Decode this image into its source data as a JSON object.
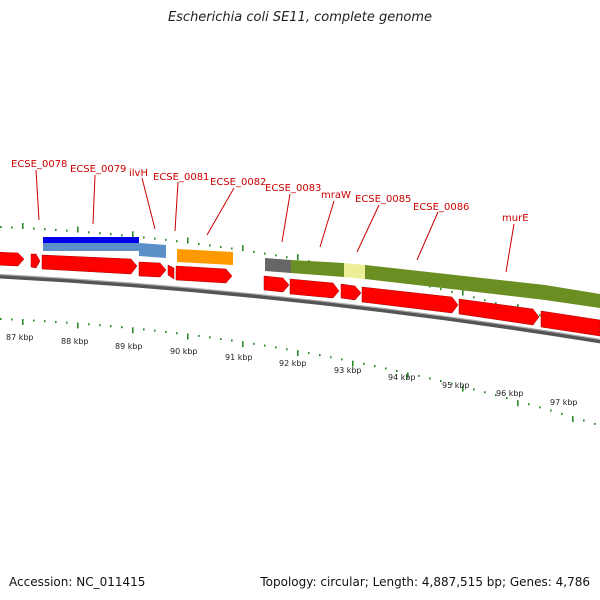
{
  "title": "Escherichia coli SE11, complete genome",
  "footer": {
    "accession": "Accession: NC_011415",
    "summary": "Topology: circular; Length: 4,887,515 bp; Genes: 4,786"
  },
  "kbp_labels": [
    "87 kbp",
    "88 kbp",
    "89 kbp",
    "90 kbp",
    "91 kbp",
    "92 kbp",
    "93 kbp",
    "94 kbp",
    "95 kbp",
    "96 kbp",
    "97 kbp"
  ],
  "gene_labels": [
    "ECSE_0078",
    "ECSE_0079",
    "ilvH",
    "ECSE_0081",
    "ECSE_0082",
    "ECSE_0083",
    "mraW",
    "ECSE_0085",
    "ECSE_0086",
    "murE"
  ],
  "colors": {
    "label": "#cc0000",
    "cds": "#ff0000",
    "tick": "#2a8a2a",
    "backbone": "#888888",
    "blue": "#0000ee",
    "steel": "#5a8fc8",
    "orange": "#ff9900",
    "olive": "#6b8e23",
    "gray_block": "#666666",
    "pale_yellow": "#eeee99"
  }
}
